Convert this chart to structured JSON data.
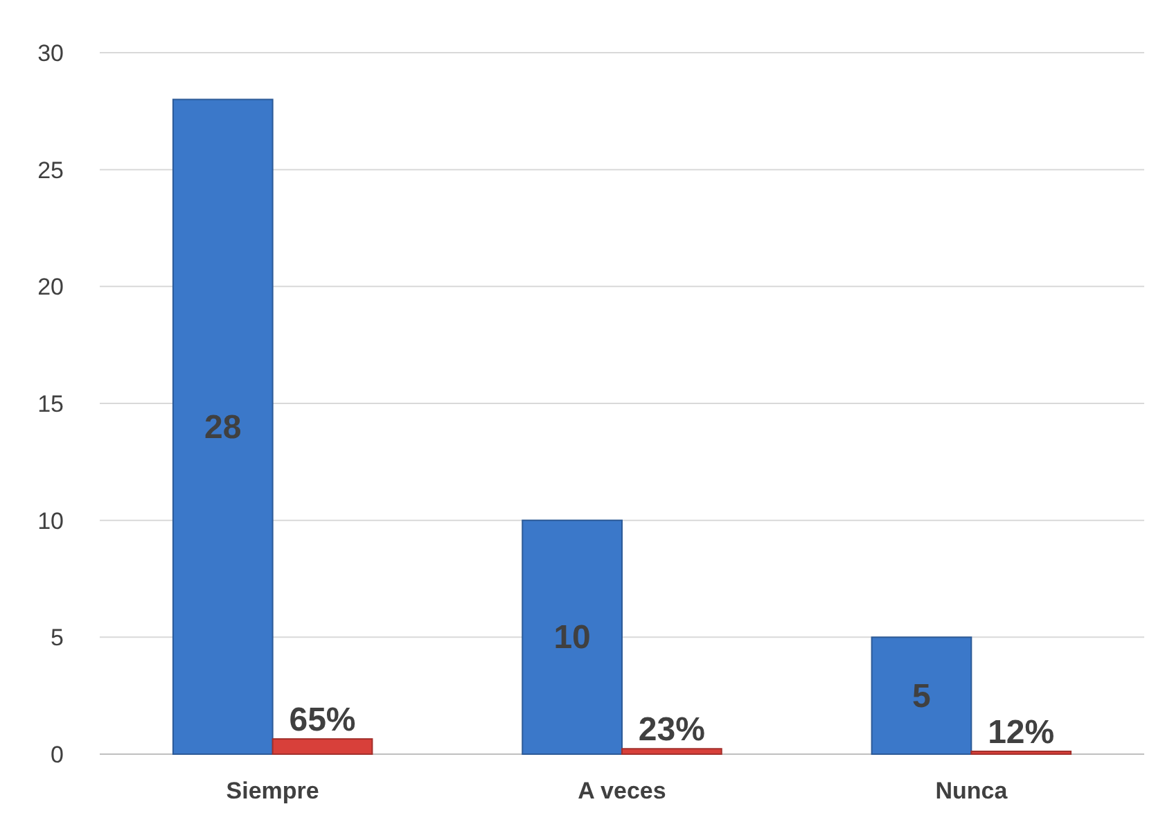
{
  "chart_data": {
    "type": "bar",
    "categories": [
      "Siempre",
      "A veces",
      "Nunca"
    ],
    "series": [
      {
        "color": "#3b78c9",
        "values": [
          28,
          10,
          5
        ],
        "value_labels": [
          "28",
          "10",
          "5"
        ]
      },
      {
        "color": "#d8403a",
        "values": [
          0.65,
          0.23,
          0.12
        ],
        "value_labels": [
          "65%",
          "23%",
          "12%"
        ]
      }
    ],
    "ylim": [
      0,
      30
    ],
    "yticks": [
      0,
      5,
      10,
      15,
      20,
      25,
      30
    ],
    "grid": "y"
  }
}
